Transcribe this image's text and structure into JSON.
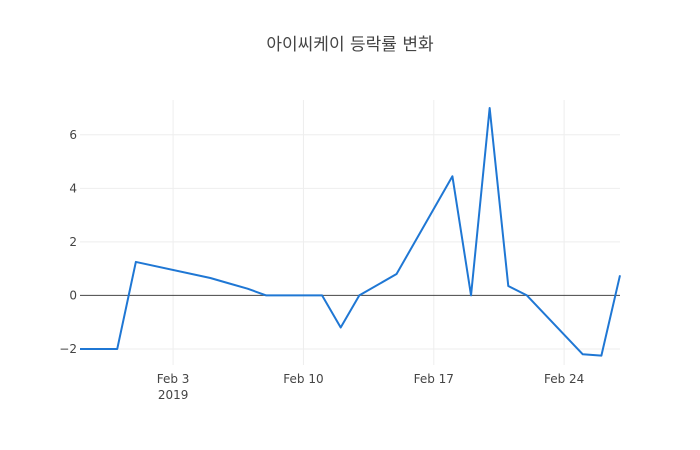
{
  "chart_data": {
    "type": "line",
    "title": "아이씨케이 등락률 변화",
    "xlabel": "",
    "ylabel": "",
    "x_axis": {
      "type": "date",
      "range": [
        "2019-01-29",
        "2019-02-27"
      ],
      "ticks": [
        {
          "date": "2019-02-03",
          "label": "Feb 3",
          "sublabel": "2019"
        },
        {
          "date": "2019-02-10",
          "label": "Feb 10",
          "sublabel": ""
        },
        {
          "date": "2019-02-17",
          "label": "Feb 17",
          "sublabel": ""
        },
        {
          "date": "2019-02-24",
          "label": "Feb 24",
          "sublabel": ""
        }
      ]
    },
    "y_axis": {
      "range": [
        -2.6,
        7.3
      ],
      "ticks": [
        {
          "value": -2,
          "label": "−2"
        },
        {
          "value": 0,
          "label": "0"
        },
        {
          "value": 2,
          "label": "2"
        },
        {
          "value": 4,
          "label": "4"
        },
        {
          "value": 6,
          "label": "6"
        }
      ]
    },
    "grid": true,
    "legend": "none",
    "series": [
      {
        "color": "#1f77d4",
        "points": [
          {
            "x": "2019-01-29",
            "y": -2.0
          },
          {
            "x": "2019-01-31",
            "y": -2.0
          },
          {
            "x": "2019-02-01",
            "y": 1.25
          },
          {
            "x": "2019-02-05",
            "y": 0.65
          },
          {
            "x": "2019-02-06",
            "y": 0.45
          },
          {
            "x": "2019-02-07",
            "y": 0.25
          },
          {
            "x": "2019-02-08",
            "y": 0.0
          },
          {
            "x": "2019-02-11",
            "y": 0.0
          },
          {
            "x": "2019-02-12",
            "y": -1.2
          },
          {
            "x": "2019-02-13",
            "y": 0.0
          },
          {
            "x": "2019-02-15",
            "y": 0.8
          },
          {
            "x": "2019-02-18",
            "y": 4.45
          },
          {
            "x": "2019-02-19",
            "y": 0.0
          },
          {
            "x": "2019-02-20",
            "y": 7.0
          },
          {
            "x": "2019-02-21",
            "y": 0.35
          },
          {
            "x": "2019-02-22",
            "y": 0.0
          },
          {
            "x": "2019-02-25",
            "y": -2.2
          },
          {
            "x": "2019-02-26",
            "y": -2.25
          },
          {
            "x": "2019-02-27",
            "y": 0.75
          }
        ]
      }
    ]
  }
}
